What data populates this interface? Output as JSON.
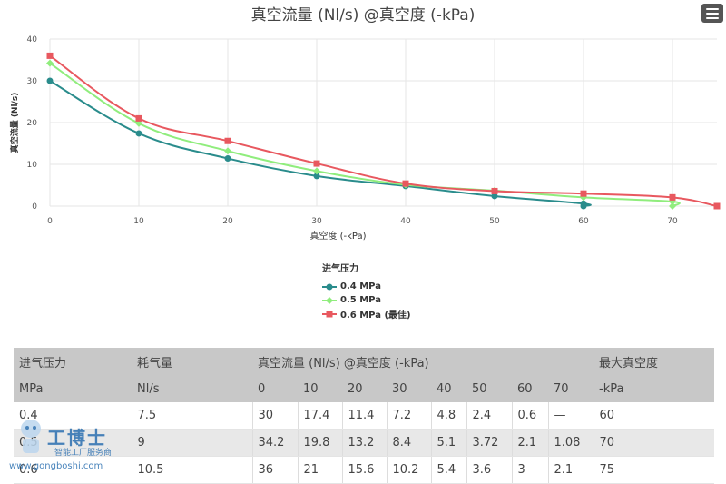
{
  "chart_data": {
    "type": "line",
    "title": "真空流量 (Nl/s) @真空度 (-kPa)",
    "xlabel": "真空度 (-kPa)",
    "ylabel": "真空流量 (Nl/s)",
    "xlim": [
      0,
      75
    ],
    "ylim": [
      0,
      40
    ],
    "xticks": [
      0,
      10,
      20,
      30,
      40,
      50,
      60,
      70
    ],
    "yticks": [
      0,
      10,
      20,
      30,
      40
    ],
    "grid": true,
    "legend_title": "进气压力",
    "legend_placement": "bottom-center",
    "series": [
      {
        "name": "0.4 MPa",
        "color": "#2a8c8c",
        "marker": "circle",
        "x": [
          0,
          10,
          20,
          30,
          40,
          50,
          60,
          60
        ],
        "y": [
          30,
          17.4,
          11.4,
          7.2,
          4.8,
          2.4,
          0.6,
          0
        ]
      },
      {
        "name": "0.5 MPa",
        "color": "#90ed7d",
        "marker": "diamond",
        "x": [
          0,
          10,
          20,
          30,
          40,
          50,
          60,
          70,
          70
        ],
        "y": [
          34.2,
          19.8,
          13.2,
          8.4,
          5.1,
          3.72,
          2.1,
          1.08,
          0
        ]
      },
      {
        "name": "0.6 MPa (最佳)",
        "color": "#e8585f",
        "marker": "square",
        "x": [
          0,
          10,
          20,
          30,
          40,
          50,
          60,
          70,
          75
        ],
        "y": [
          36,
          21,
          15.6,
          10.2,
          5.4,
          3.6,
          3,
          2.1,
          0
        ]
      }
    ]
  },
  "table": {
    "header1": [
      "进气压力",
      "耗气量",
      "真空流量 (Nl/s) @真空度 (-kPa)",
      "最大真空度"
    ],
    "header2": [
      "MPa",
      "Nl/s",
      "0",
      "10",
      "20",
      "30",
      "40",
      "50",
      "60",
      "70",
      "-kPa"
    ],
    "rows": [
      [
        "0.4",
        "7.5",
        "30",
        "17.4",
        "11.4",
        "7.2",
        "4.8",
        "2.4",
        "0.6",
        "—",
        "60"
      ],
      [
        "0.5",
        "9",
        "34.2",
        "19.8",
        "13.2",
        "8.4",
        "5.1",
        "3.72",
        "2.1",
        "1.08",
        "70"
      ],
      [
        "0.6",
        "10.5",
        "36",
        "21",
        "15.6",
        "10.2",
        "5.4",
        "3.6",
        "3",
        "2.1",
        "75"
      ]
    ]
  },
  "watermark": {
    "brand": "工博士",
    "subtitle": "智能工厂服务商",
    "url": "www.gongboshi.com"
  },
  "icons": {
    "menu": "hamburger-menu-icon"
  }
}
